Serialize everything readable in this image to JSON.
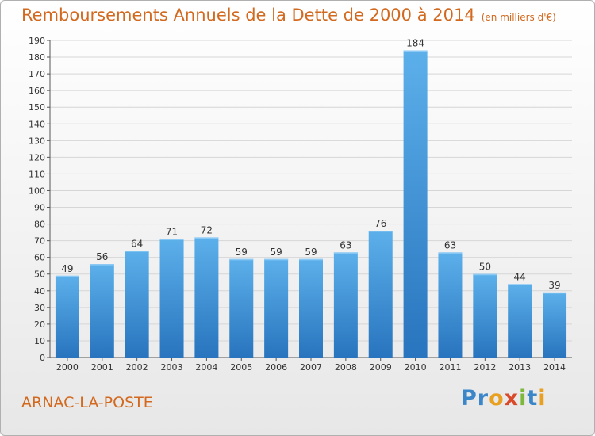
{
  "header": {
    "title": "Remboursements Annuels de la Dette de 2000 à 2014",
    "subtitle": "(en milliers d'€)"
  },
  "footer": {
    "commune": "ARNAC-LA-POSTE",
    "logo": "Proxiti"
  },
  "colors": {
    "title": "#d2691e",
    "bar_top": "#5aaae6",
    "bar_bottom": "#2a78c2",
    "grid": "#d8d8d8"
  },
  "chart_data": {
    "type": "bar",
    "title": "Remboursements Annuels de la Dette de 2000 à 2014",
    "subtitle": "(en milliers d'€)",
    "xlabel": "",
    "ylabel": "",
    "categories": [
      "2000",
      "2001",
      "2002",
      "2003",
      "2004",
      "2005",
      "2006",
      "2007",
      "2008",
      "2009",
      "2010",
      "2011",
      "2012",
      "2013",
      "2014"
    ],
    "values": [
      49,
      56,
      64,
      71,
      72,
      59,
      59,
      59,
      63,
      76,
      184,
      63,
      50,
      44,
      39
    ],
    "ylim": [
      0,
      190
    ],
    "yticks": [
      0,
      10,
      20,
      30,
      40,
      50,
      60,
      70,
      80,
      90,
      100,
      110,
      120,
      130,
      140,
      150,
      160,
      170,
      180,
      190
    ],
    "grid": true,
    "legend": "none"
  }
}
